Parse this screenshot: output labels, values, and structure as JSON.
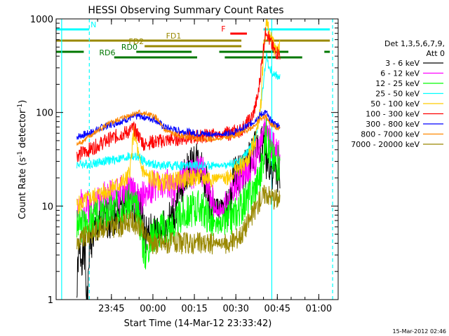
{
  "chart_data": {
    "type": "line",
    "title": "HESSI Observing Summary Count Rates",
    "xlabel": "Start Time (14-Mar-12 23:33:42)",
    "ylabel_main": "Count Rate (s",
    "ylabel_sup1": "-1",
    "ylabel_mid": " detector",
    "ylabel_sup2": "-1",
    "ylabel_end": ")",
    "yscale": "log",
    "xlim_min": [
      -9,
      93
    ],
    "ylim": [
      1,
      1000
    ],
    "x_ticks": [
      {
        "label": "23:45",
        "t": 11
      },
      {
        "label": "00:00",
        "t": 26
      },
      {
        "label": "00:15",
        "t": 41
      },
      {
        "label": "00:30",
        "t": 56
      },
      {
        "label": "00:45",
        "t": 71
      },
      {
        "label": "01:00",
        "t": 86
      }
    ],
    "y_ticks": [
      {
        "label": "1",
        "v": 1
      },
      {
        "label": "10",
        "v": 10
      },
      {
        "label": "100",
        "v": 100
      },
      {
        "label": "1000",
        "v": 1000
      }
    ],
    "legend_title_1": "Det 1,3,5,6,7,9,",
    "legend_title_2": "Att 0",
    "timestamp": "15-Mar-2012 02:46",
    "series": [
      {
        "name": "3 - 6 keV",
        "color": "#000000",
        "seed": 1,
        "points": [
          [
            -1.5,
            1
          ],
          [
            -1,
            3
          ],
          [
            1.5,
            3
          ],
          [
            2,
            1
          ],
          [
            2.5,
            1
          ],
          [
            3,
            4
          ],
          [
            6,
            6
          ],
          [
            12,
            8
          ],
          [
            18,
            12
          ],
          [
            21,
            10
          ],
          [
            23,
            5
          ],
          [
            28,
            5
          ],
          [
            34,
            8
          ],
          [
            36,
            16
          ],
          [
            39,
            25
          ],
          [
            42,
            30
          ],
          [
            44,
            24
          ],
          [
            46,
            14
          ],
          [
            47,
            10
          ],
          [
            53,
            9
          ],
          [
            55,
            20
          ],
          [
            58,
            22
          ],
          [
            60,
            28
          ],
          [
            62,
            35
          ],
          [
            64,
            45
          ],
          [
            66,
            50
          ],
          [
            67,
            30
          ],
          [
            68,
            28
          ],
          [
            69,
            25
          ],
          [
            70,
            22
          ],
          [
            72,
            20
          ]
        ],
        "noise": 0.22,
        "gaps": [
          [
            23.6,
            24.4
          ],
          [
            48,
            52
          ]
        ]
      },
      {
        "name": "6 - 12 keV",
        "color": "#ff00ff",
        "seed": 2,
        "points": [
          [
            -1.5,
            10
          ],
          [
            3,
            10
          ],
          [
            8,
            12
          ],
          [
            14,
            14
          ],
          [
            18,
            15
          ],
          [
            21,
            11
          ],
          [
            23,
            13
          ],
          [
            26,
            16
          ],
          [
            29,
            18
          ],
          [
            32,
            16
          ],
          [
            34,
            14
          ],
          [
            36,
            20
          ],
          [
            40,
            22
          ],
          [
            43,
            25
          ],
          [
            46,
            18
          ],
          [
            48,
            10
          ],
          [
            50,
            9
          ],
          [
            53,
            11
          ],
          [
            55,
            15
          ],
          [
            58,
            20
          ],
          [
            62,
            28
          ],
          [
            65,
            45
          ],
          [
            67,
            70
          ],
          [
            68,
            50
          ],
          [
            70,
            40
          ],
          [
            72,
            38
          ]
        ],
        "noise": 0.18,
        "gaps": [
          [
            23.6,
            24.4
          ],
          [
            48,
            52
          ]
        ]
      },
      {
        "name": "12 - 25 keV",
        "color": "#00ff00",
        "seed": 3,
        "points": [
          [
            -1.5,
            6
          ],
          [
            3,
            7
          ],
          [
            8,
            8
          ],
          [
            14,
            10
          ],
          [
            18,
            11
          ],
          [
            21,
            8
          ],
          [
            23,
            3
          ],
          [
            26,
            5
          ],
          [
            30,
            6
          ],
          [
            34,
            6
          ],
          [
            36,
            8
          ],
          [
            40,
            9
          ],
          [
            43,
            10
          ],
          [
            46,
            8
          ],
          [
            48,
            6
          ],
          [
            53,
            7
          ],
          [
            55,
            8
          ],
          [
            58,
            10
          ],
          [
            62,
            14
          ],
          [
            65,
            22
          ],
          [
            67,
            60
          ],
          [
            68,
            40
          ],
          [
            70,
            30
          ],
          [
            72,
            28
          ]
        ],
        "noise": 0.2,
        "gaps": [
          [
            23.6,
            24.4
          ],
          [
            48,
            52
          ]
        ]
      },
      {
        "name": "25 - 50 keV",
        "color": "#00ffff",
        "seed": 4,
        "points": [
          [
            -1.5,
            28
          ],
          [
            3,
            28
          ],
          [
            8,
            30
          ],
          [
            14,
            32
          ],
          [
            18,
            34
          ],
          [
            21,
            33
          ],
          [
            23,
            30
          ],
          [
            25,
            28
          ],
          [
            30,
            27
          ],
          [
            34,
            27
          ],
          [
            38,
            27
          ],
          [
            42,
            27
          ],
          [
            46,
            27
          ],
          [
            50,
            27
          ],
          [
            54,
            28
          ],
          [
            58,
            30
          ],
          [
            62,
            45
          ],
          [
            64,
            70
          ],
          [
            66,
            200
          ],
          [
            67,
            420
          ],
          [
            68,
            300
          ],
          [
            70,
            250
          ],
          [
            72,
            240
          ]
        ],
        "noise": 0.05,
        "gaps": [
          [
            23.6,
            24.4
          ],
          [
            48,
            52
          ]
        ]
      },
      {
        "name": "50 - 100 keV",
        "color": "#ffcc00",
        "seed": 5,
        "points": [
          [
            -1.5,
            10
          ],
          [
            3,
            12
          ],
          [
            8,
            14
          ],
          [
            12,
            16
          ],
          [
            15,
            18
          ],
          [
            17,
            20
          ],
          [
            18,
            28
          ],
          [
            19,
            60
          ],
          [
            20,
            50
          ],
          [
            21,
            30
          ],
          [
            23,
            22
          ],
          [
            25,
            20
          ],
          [
            28,
            18
          ],
          [
            32,
            18
          ],
          [
            36,
            19
          ],
          [
            40,
            20
          ],
          [
            44,
            20
          ],
          [
            48,
            20
          ],
          [
            52,
            20
          ],
          [
            56,
            24
          ],
          [
            60,
            30
          ],
          [
            63,
            50
          ],
          [
            65,
            120
          ],
          [
            66,
            450
          ],
          [
            67,
            900
          ],
          [
            68,
            700
          ],
          [
            70,
            500
          ],
          [
            72,
            480
          ]
        ],
        "noise": 0.1,
        "gaps": [
          [
            23.6,
            24.4
          ],
          [
            48,
            52
          ]
        ]
      },
      {
        "name": "100 - 300 keV",
        "color": "#ff0000",
        "seed": 6,
        "points": [
          [
            -1.5,
            35
          ],
          [
            3,
            40
          ],
          [
            8,
            48
          ],
          [
            14,
            58
          ],
          [
            17,
            62
          ],
          [
            19,
            68
          ],
          [
            21,
            55
          ],
          [
            23,
            45
          ],
          [
            25,
            48
          ],
          [
            30,
            50
          ],
          [
            34,
            52
          ],
          [
            38,
            54
          ],
          [
            42,
            55
          ],
          [
            46,
            57
          ],
          [
            50,
            58
          ],
          [
            54,
            60
          ],
          [
            58,
            65
          ],
          [
            62,
            90
          ],
          [
            64,
            150
          ],
          [
            66,
            500
          ],
          [
            67,
            800
          ],
          [
            68,
            600
          ],
          [
            70,
            450
          ],
          [
            72,
            420
          ]
        ],
        "noise": 0.08,
        "gaps": [
          [
            23.6,
            24.4
          ],
          [
            48,
            52
          ]
        ]
      },
      {
        "name": "300 - 800 keV",
        "color": "#0000ff",
        "seed": 7,
        "points": [
          [
            -1.5,
            55
          ],
          [
            3,
            60
          ],
          [
            8,
            70
          ],
          [
            14,
            80
          ],
          [
            18,
            88
          ],
          [
            21,
            92
          ],
          [
            24,
            88
          ],
          [
            27,
            84
          ],
          [
            30,
            70
          ],
          [
            34,
            65
          ],
          [
            38,
            62
          ],
          [
            42,
            60
          ],
          [
            46,
            59
          ],
          [
            50,
            58
          ],
          [
            54,
            60
          ],
          [
            58,
            65
          ],
          [
            62,
            78
          ],
          [
            65,
            95
          ],
          [
            67,
            100
          ],
          [
            68,
            85
          ],
          [
            70,
            75
          ],
          [
            72,
            72
          ]
        ],
        "noise": 0.04,
        "gaps": [
          [
            23.6,
            24.4
          ],
          [
            48,
            52
          ]
        ]
      },
      {
        "name": "800 - 7000 keV",
        "color": "#ff8800",
        "seed": 8,
        "points": [
          [
            -1.5,
            45
          ],
          [
            3,
            55
          ],
          [
            8,
            70
          ],
          [
            14,
            85
          ],
          [
            18,
            95
          ],
          [
            21,
            100
          ],
          [
            24,
            95
          ],
          [
            27,
            90
          ],
          [
            30,
            65
          ],
          [
            34,
            58
          ],
          [
            38,
            55
          ],
          [
            42,
            53
          ],
          [
            46,
            52
          ],
          [
            50,
            52
          ],
          [
            54,
            55
          ],
          [
            58,
            60
          ],
          [
            62,
            70
          ],
          [
            65,
            85
          ],
          [
            67,
            90
          ],
          [
            68,
            78
          ],
          [
            70,
            70
          ],
          [
            72,
            68
          ]
        ],
        "noise": 0.03,
        "gaps": [
          [
            23.6,
            24.4
          ],
          [
            48,
            52
          ]
        ]
      },
      {
        "name": "7000 - 20000 keV",
        "color": "#998800",
        "seed": 9,
        "points": [
          [
            -1.5,
            4
          ],
          [
            3,
            5
          ],
          [
            8,
            6
          ],
          [
            14,
            6
          ],
          [
            18,
            7
          ],
          [
            21,
            6
          ],
          [
            23,
            5
          ],
          [
            26,
            4
          ],
          [
            30,
            4
          ],
          [
            34,
            4
          ],
          [
            38,
            4
          ],
          [
            42,
            4
          ],
          [
            46,
            4
          ],
          [
            50,
            4
          ],
          [
            54,
            4
          ],
          [
            58,
            5
          ],
          [
            62,
            8
          ],
          [
            65,
            12
          ],
          [
            67,
            14
          ],
          [
            68,
            13
          ],
          [
            70,
            12
          ],
          [
            72,
            12
          ]
        ],
        "noise": 0.12,
        "gaps": [
          [
            23.6,
            24.4
          ],
          [
            48,
            52
          ]
        ]
      }
    ],
    "flags": [
      {
        "label": "N",
        "color": "#00ffff",
        "segments": [
          [
            -9,
            3
          ],
          [
            66,
            90
          ]
        ]
      },
      {
        "label": "F",
        "color": "#ff0000",
        "segments": [
          [
            54,
            60
          ]
        ]
      },
      {
        "label": "FD1",
        "color": "#998800",
        "segments": [
          [
            -9,
            58
          ],
          [
            66,
            90
          ]
        ]
      },
      {
        "label": "FD2",
        "color": "#998800",
        "segments": [
          [
            23,
            58
          ]
        ]
      },
      {
        "label": "RD0",
        "color": "#007700",
        "segments": [
          [
            -9,
            1
          ],
          [
            20,
            40
          ],
          [
            50,
            75
          ],
          [
            88,
            90
          ]
        ]
      },
      {
        "label": "RD6",
        "color": "#007700",
        "segments": [
          [
            12,
            42
          ],
          [
            52,
            80
          ]
        ]
      }
    ],
    "vlines": [
      {
        "t": -7,
        "color": "#00ffff",
        "style": "solid"
      },
      {
        "t": 3,
        "color": "#00ffff",
        "style": "dashed"
      },
      {
        "t": 69,
        "color": "#00ffff",
        "style": "solid"
      },
      {
        "t": 91,
        "color": "#00ffff",
        "style": "dashed"
      }
    ]
  }
}
